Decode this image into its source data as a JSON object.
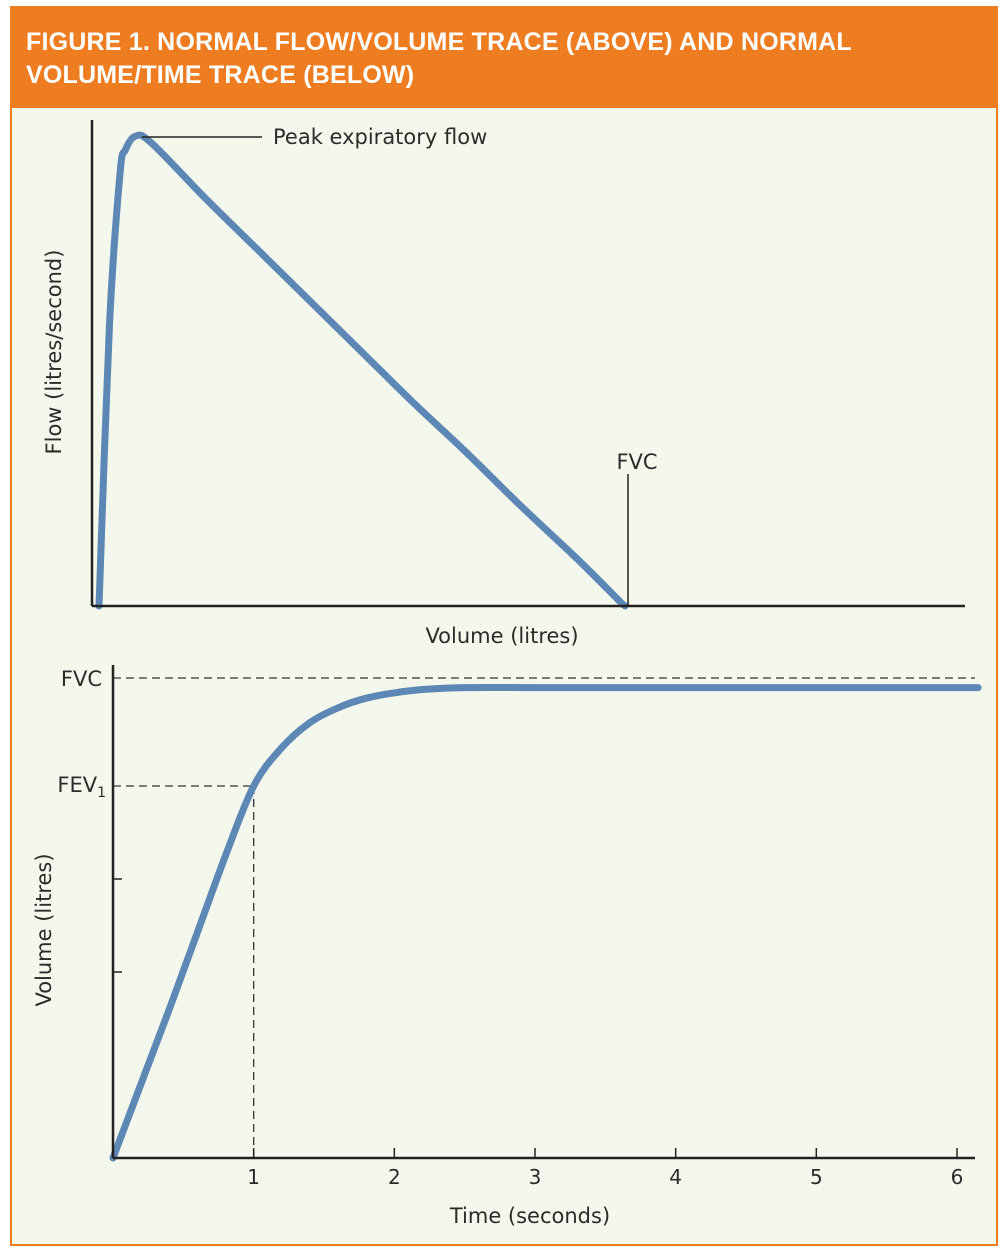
{
  "figure": {
    "title": "FIGURE 1. NORMAL FLOW/VOLUME TRACE (ABOVE) AND NORMAL VOLUME/TIME TRACE (BELOW)"
  },
  "colors": {
    "header": "#ee7d22",
    "background": "#f4f8ec",
    "trace": "#5d88b5",
    "axis": "#222222"
  },
  "chart_data": [
    {
      "type": "line",
      "title": "",
      "xlabel": "Volume (litres)",
      "ylabel": "Flow (litres/second)",
      "x_ticks": false,
      "y_ticks": false,
      "x": [
        0,
        0.02,
        0.04,
        0.05,
        0.07,
        0.1,
        0.2,
        0.3,
        0.4,
        0.5,
        0.6,
        0.7,
        0.8,
        0.9,
        0.95,
        0.99,
        1.0
      ],
      "series": [
        {
          "values": [
            0,
            0.6,
            0.92,
            0.97,
            1.0,
            0.985,
            0.87,
            0.76,
            0.65,
            0.54,
            0.43,
            0.325,
            0.215,
            0.11,
            0.055,
            0.01,
            0
          ]
        }
      ],
      "annotations": [
        {
          "label": "Peak expiratory flow",
          "x": 0.07,
          "y": 1.0
        },
        {
          "label": "FVC",
          "x": 1.0,
          "y": 0
        }
      ]
    },
    {
      "type": "line",
      "title": "",
      "xlabel": "Time (seconds)",
      "ylabel": "Volume (litres)",
      "xlim": [
        0,
        6
      ],
      "x_ticks": [
        "1",
        "2",
        "3",
        "4",
        "5",
        "6"
      ],
      "x": [
        0,
        0.2,
        0.4,
        0.6,
        0.8,
        1.0,
        1.2,
        1.4,
        1.6,
        1.8,
        2.0,
        2.2,
        2.5,
        3.0,
        4.0,
        5.0,
        6.0,
        6.15
      ],
      "series": [
        {
          "values": [
            0,
            0.155,
            0.31,
            0.47,
            0.63,
            0.775,
            0.855,
            0.907,
            0.938,
            0.958,
            0.969,
            0.976,
            0.98,
            0.98,
            0.98,
            0.98,
            0.98,
            0.98
          ]
        }
      ],
      "reference_lines": [
        {
          "label": "FVC",
          "y": 1.0
        },
        {
          "label": "FEV",
          "subscript": "1",
          "y": 0.775,
          "x": 1.0
        }
      ]
    }
  ]
}
